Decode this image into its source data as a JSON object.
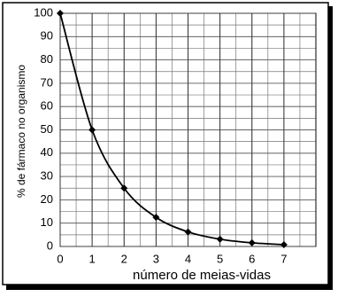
{
  "chart_data": {
    "type": "line",
    "x_label": "número de meias-vidas",
    "y_label": "% de fármaco no organismo",
    "x": [
      0,
      1,
      2,
      3,
      4,
      5,
      6,
      7
    ],
    "series": [
      {
        "color": "#000000",
        "values": [
          100,
          50,
          25,
          12.5,
          6.25,
          3.125,
          1.5625,
          0.78
        ]
      }
    ],
    "xlim": [
      0,
      8
    ],
    "xticks": [
      0,
      1,
      2,
      3,
      4,
      5,
      6,
      7
    ],
    "ylim": [
      0,
      100
    ],
    "yticks": [
      0,
      10,
      20,
      30,
      40,
      50,
      60,
      70,
      80,
      90,
      100
    ],
    "grid": true
  }
}
